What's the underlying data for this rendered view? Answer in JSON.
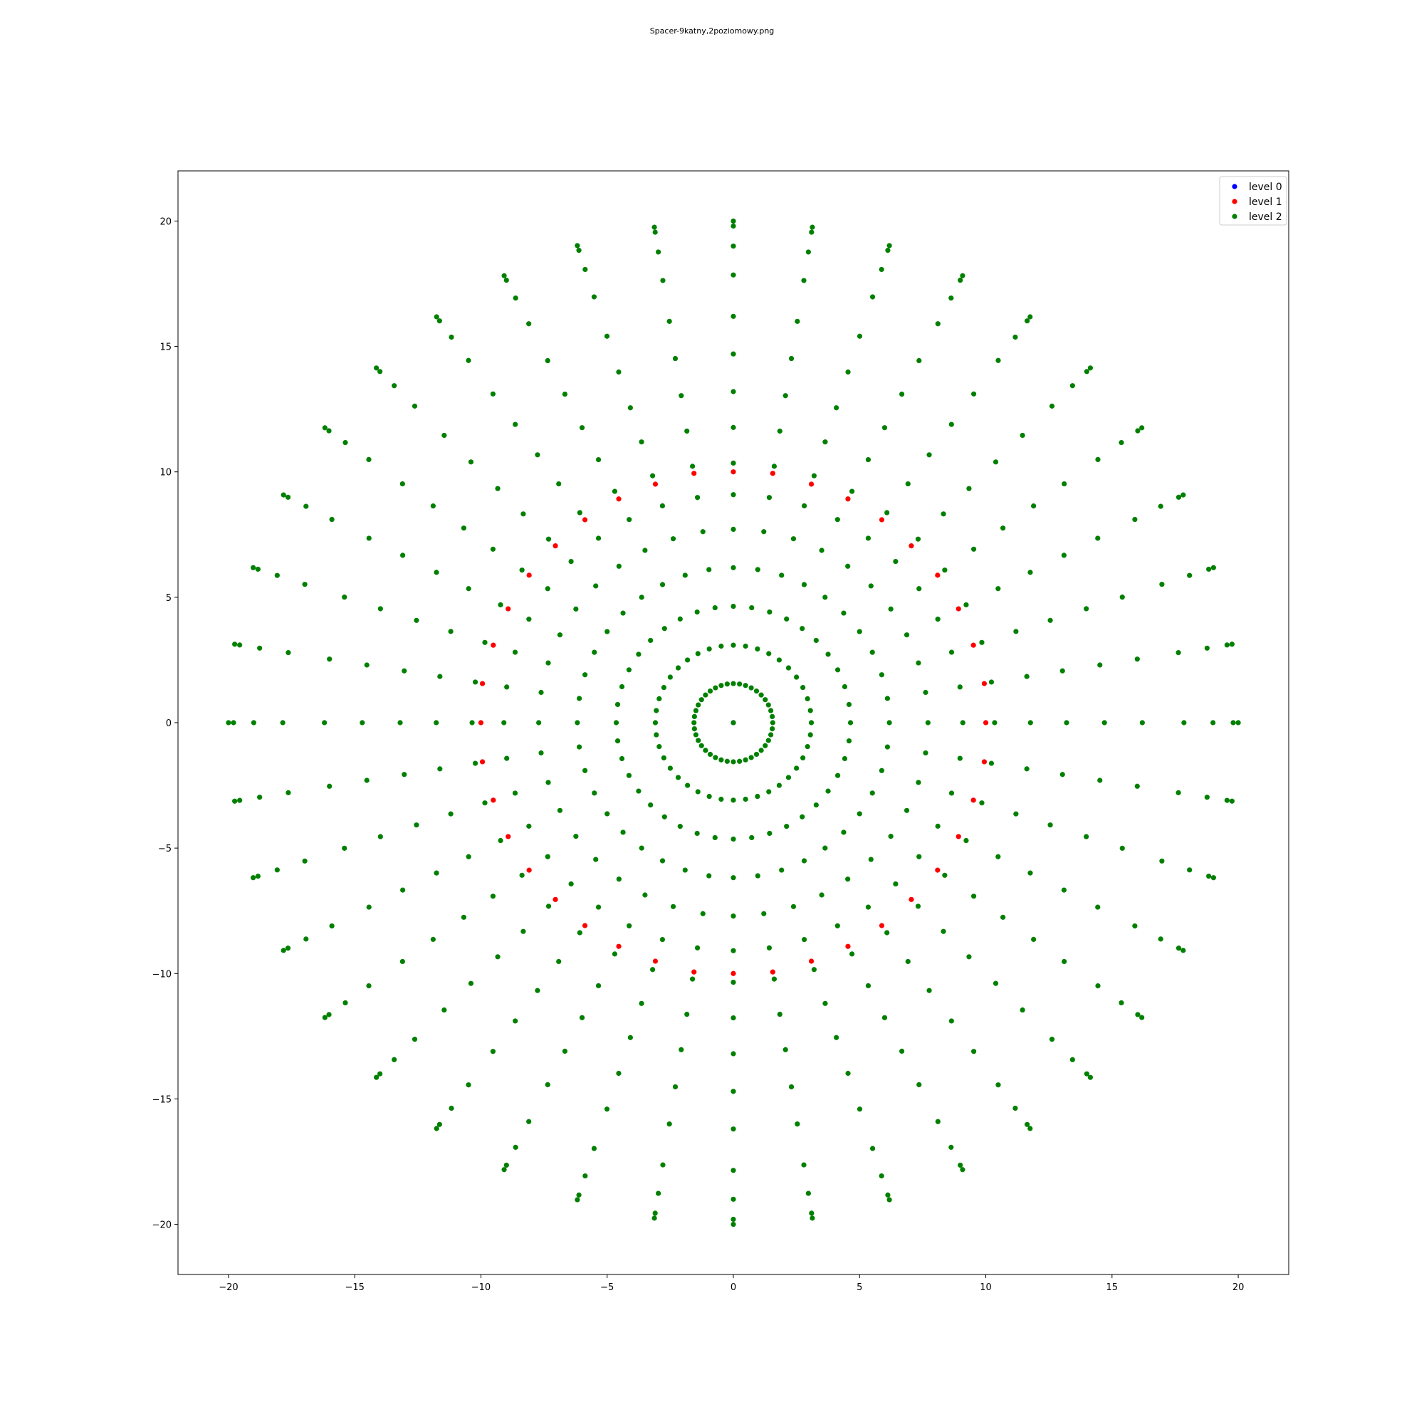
{
  "chart_data": {
    "type": "scatter",
    "title": "Spacer-9katny,2poziomowy.png",
    "xlabel": "",
    "ylabel": "",
    "xlim": [
      -22,
      22
    ],
    "ylim": [
      -22,
      22
    ],
    "xticks": [
      -20,
      -15,
      -10,
      -5,
      0,
      5,
      10,
      15,
      20
    ],
    "yticks": [
      -20,
      -15,
      -10,
      -5,
      0,
      5,
      10,
      15,
      20
    ],
    "xtick_labels": [
      "−20",
      "−15",
      "−10",
      "−5",
      "0",
      "5",
      "10",
      "15",
      "20"
    ],
    "ytick_labels": [
      "−20",
      "−15",
      "−10",
      "−5",
      "0",
      "5",
      "10",
      "15",
      "20"
    ],
    "grid": false,
    "legend_position": "top-right",
    "colors": {
      "level 0": "#0000ff",
      "level 1": "#ff0000",
      "level 2": "#008000"
    },
    "series": [
      {
        "name": "level 0",
        "color": "#0000ff",
        "x": [
          0
        ],
        "y": [
          0
        ]
      },
      {
        "name": "level 1",
        "color": "#ff0000",
        "x": [
          10,
          9.94,
          9.51,
          8.92,
          8.09,
          7.05,
          5.88,
          4.54,
          3.09,
          1.56,
          0,
          -1.56,
          -3.09,
          -4.54,
          -5.88,
          -7.05,
          -8.09,
          -8.92,
          -9.51,
          -9.94,
          -10,
          -9.94,
          -9.51,
          -8.92,
          -8.09,
          -7.05,
          -5.88,
          -4.54,
          -3.09,
          -1.56,
          0,
          1.56,
          3.09,
          4.54,
          5.88,
          7.05,
          8.09,
          8.92,
          9.51,
          9.94
        ],
        "y": [
          0,
          1.56,
          3.09,
          4.54,
          5.88,
          7.05,
          8.09,
          8.92,
          9.51,
          9.94,
          10,
          9.94,
          9.51,
          8.92,
          8.09,
          7.05,
          5.88,
          4.54,
          3.09,
          1.56,
          0,
          -1.56,
          -3.09,
          -4.54,
          -5.88,
          -7.05,
          -8.09,
          -8.92,
          -9.51,
          -9.94,
          -10,
          -9.94,
          -9.51,
          -8.92,
          -8.09,
          -7.05,
          -5.88,
          -4.54,
          -3.09,
          -1.56
        ]
      },
      {
        "name": "level 2",
        "color": "#008000",
        "rings": [
          {
            "radius": 1.56,
            "points": 40
          },
          {
            "radius": 3.09,
            "points": 40
          },
          {
            "radius": 4.64,
            "points": 40
          },
          {
            "radius": 6.18,
            "points": 40
          },
          {
            "radius": 7.71,
            "points": 40
          },
          {
            "radius": 9.09,
            "points": 40
          },
          {
            "radius": 10.35,
            "points": 40
          },
          {
            "radius": 11.77,
            "points": 40
          },
          {
            "radius": 13.2,
            "points": 40
          },
          {
            "radius": 14.7,
            "points": 40
          },
          {
            "radius": 16.2,
            "points": 40
          },
          {
            "radius": 17.85,
            "points": 40
          },
          {
            "radius": 19.0,
            "points": 40
          },
          {
            "radius": 19.8,
            "points": 40
          },
          {
            "radius": 20.0,
            "points": 40
          }
        ],
        "center_point": [
          0,
          0
        ]
      }
    ]
  }
}
